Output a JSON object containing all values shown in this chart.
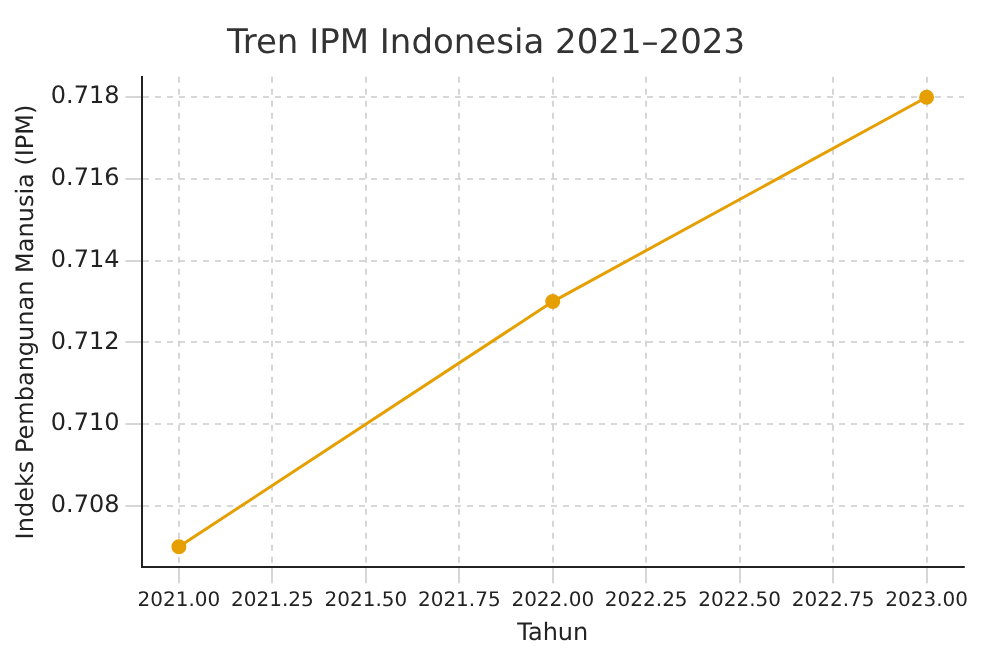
{
  "chart_data": {
    "type": "line",
    "title": "Tren IPM Indonesia 2021–2023",
    "xlabel": "Tahun",
    "ylabel": "Indeks Pembangunan Manusia (IPM)",
    "x": [
      2021,
      2022,
      2023
    ],
    "series": [
      {
        "color": "#e69f00",
        "values": [
          0.707,
          0.713,
          0.718
        ]
      }
    ],
    "xlim": [
      2020.9,
      2023.1
    ],
    "xticks": [
      {
        "value": 2021,
        "label": "2021.00"
      },
      {
        "value": 2021.25,
        "label": "2021.25"
      },
      {
        "value": 2021.5,
        "label": "2021.50"
      },
      {
        "value": 2021.75,
        "label": "2021.75"
      },
      {
        "value": 2022,
        "label": "2022.00"
      },
      {
        "value": 2022.25,
        "label": "2022.25"
      },
      {
        "value": 2022.5,
        "label": "2022.50"
      },
      {
        "value": 2022.75,
        "label": "2022.75"
      },
      {
        "value": 2023,
        "label": "2023.00"
      }
    ],
    "ylim": [
      0.7065,
      0.7185
    ],
    "yticks": [
      {
        "value": 0.708,
        "label": "0.708"
      },
      {
        "value": 0.71,
        "label": "0.710"
      },
      {
        "value": 0.712,
        "label": "0.712"
      },
      {
        "value": 0.714,
        "label": "0.714"
      },
      {
        "value": 0.716,
        "label": "0.716"
      },
      {
        "value": 0.718,
        "label": "0.718"
      }
    ],
    "grid": true,
    "marker": "circle",
    "line_style": "solid"
  }
}
